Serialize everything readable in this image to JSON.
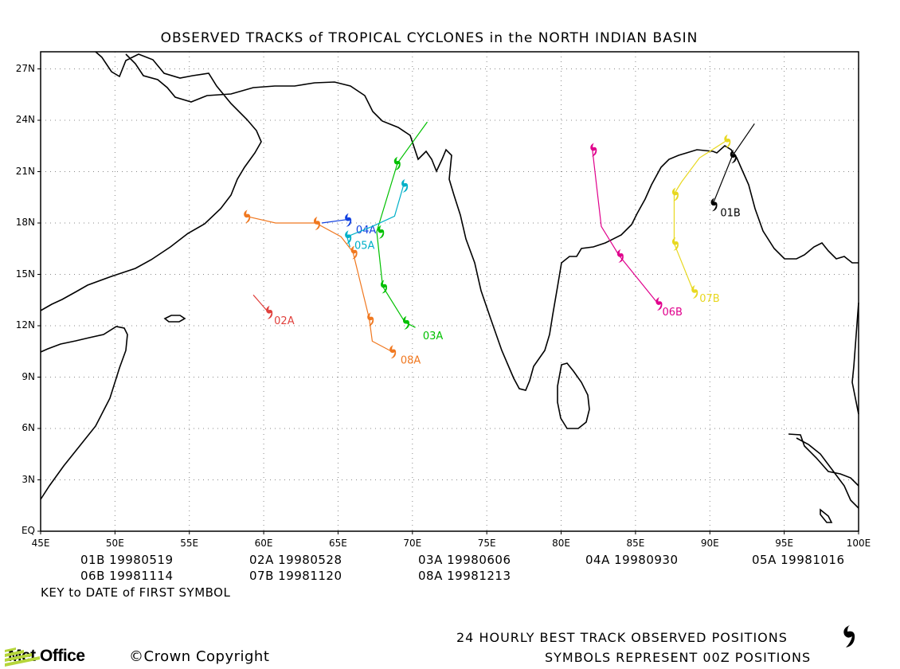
{
  "title": "OBSERVED TRACKS of TROPICAL CYCLONES in the NORTH INDIAN BASIN",
  "y_ticks": [
    "27N",
    "24N",
    "21N",
    "18N",
    "15N",
    "12N",
    "9N",
    "6N",
    "3N",
    "EQ"
  ],
  "x_ticks": [
    "45E",
    "50E",
    "55E",
    "60E",
    "65E",
    "70E",
    "75E",
    "80E",
    "85E",
    "90E",
    "95E",
    "100E"
  ],
  "key": [
    {
      "id": "01B",
      "date": "19980519"
    },
    {
      "id": "02A",
      "date": "19980528"
    },
    {
      "id": "03A",
      "date": "19980606"
    },
    {
      "id": "04A",
      "date": "19980930"
    },
    {
      "id": "05A",
      "date": "19981016"
    },
    {
      "id": "06B",
      "date": "19981114"
    },
    {
      "id": "07B",
      "date": "19981120"
    },
    {
      "id": "08A",
      "date": "19981213"
    }
  ],
  "key_caption": "KEY to DATE of FIRST SYMBOL",
  "footer_line1": "24 HOURLY BEST TRACK OBSERVED POSITIONS",
  "footer_line2": "SYMBOLS REPRESENT 00Z POSITIONS",
  "logo_text": "Met Office",
  "copyright": "©Crown Copyright",
  "tracks": [
    {
      "name": "01B",
      "color": "#000000",
      "points": [
        [
          93.0,
          23.8
        ],
        [
          91.5,
          21.9
        ],
        [
          90.2,
          19.1
        ]
      ],
      "symbols": [
        [
          91.5,
          21.9
        ],
        [
          90.2,
          19.1
        ]
      ],
      "label_at": [
        90.7,
        18.4
      ]
    },
    {
      "name": "02A",
      "color": "#e0403c",
      "points": [
        [
          59.3,
          13.8
        ],
        [
          60.3,
          12.8
        ]
      ],
      "symbols": [
        [
          60.3,
          12.8
        ]
      ],
      "label_at": [
        60.7,
        12.1
      ]
    },
    {
      "name": "03A",
      "color": "#00c000",
      "points": [
        [
          71.0,
          23.9
        ],
        [
          69.0,
          21.5
        ],
        [
          67.6,
          17.5
        ],
        [
          68.0,
          14.3
        ],
        [
          69.5,
          12.2
        ],
        [
          70.2,
          11.9
        ]
      ],
      "symbols": [
        [
          68.9,
          21.5
        ],
        [
          67.8,
          17.5
        ],
        [
          68.0,
          14.3
        ],
        [
          69.5,
          12.2
        ]
      ],
      "label_at": [
        70.7,
        11.2
      ]
    },
    {
      "name": "04A",
      "color": "#1040e0",
      "points": [
        [
          63.9,
          18.0
        ],
        [
          65.6,
          18.2
        ]
      ],
      "symbols": [
        [
          65.6,
          18.2
        ]
      ],
      "label_at": [
        66.2,
        17.4
      ]
    },
    {
      "name": "05A",
      "color": "#00b0c8",
      "points": [
        [
          69.4,
          20.2
        ],
        [
          68.8,
          18.4
        ],
        [
          67.3,
          17.8
        ],
        [
          65.6,
          17.2
        ],
        [
          65.8,
          16.6
        ]
      ],
      "symbols": [
        [
          69.4,
          20.2
        ],
        [
          65.6,
          17.2
        ]
      ],
      "label_at": [
        66.1,
        16.5
      ]
    },
    {
      "name": "06B",
      "color": "#e0008c",
      "points": [
        [
          82.1,
          22.3
        ],
        [
          82.7,
          17.8
        ],
        [
          83.9,
          16.1
        ],
        [
          86.5,
          13.3
        ]
      ],
      "symbols": [
        [
          82.1,
          22.3
        ],
        [
          83.9,
          16.1
        ],
        [
          86.5,
          13.3
        ]
      ],
      "label_at": [
        86.8,
        12.6
      ]
    },
    {
      "name": "07B",
      "color": "#e8d820",
      "points": [
        [
          91.1,
          22.8
        ],
        [
          89.3,
          21.8
        ],
        [
          88.1,
          20.4
        ],
        [
          87.6,
          19.7
        ],
        [
          87.6,
          16.8
        ],
        [
          88.9,
          14.0
        ]
      ],
      "symbols": [
        [
          91.1,
          22.8
        ],
        [
          87.6,
          19.7
        ],
        [
          87.6,
          16.8
        ],
        [
          88.9,
          14.0
        ]
      ],
      "label_at": [
        89.3,
        13.4
      ]
    },
    {
      "name": "08A",
      "color": "#f07820",
      "points": [
        [
          58.8,
          18.4
        ],
        [
          60.8,
          18.0
        ],
        [
          63.5,
          18.0
        ],
        [
          65.2,
          17.2
        ],
        [
          66.0,
          16.3
        ],
        [
          67.1,
          12.4
        ],
        [
          67.3,
          11.1
        ],
        [
          68.6,
          10.5
        ]
      ],
      "symbols": [
        [
          58.8,
          18.4
        ],
        [
          63.5,
          18.0
        ],
        [
          66.0,
          16.3
        ],
        [
          67.1,
          12.4
        ],
        [
          68.6,
          10.5
        ]
      ],
      "label_at": [
        69.2,
        9.8
      ]
    }
  ]
}
